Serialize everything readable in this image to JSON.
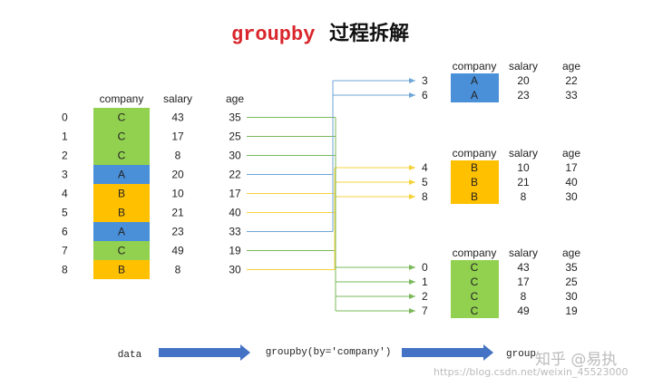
{
  "title": {
    "code": "groupby",
    "text": "过程拆解"
  },
  "headers": [
    "company",
    "salary",
    "age"
  ],
  "colors": {
    "A": "#4a90d9",
    "B": "#ffc000",
    "C": "#92d050"
  },
  "source_rows": [
    {
      "index": "0",
      "company": "C",
      "salary": "43",
      "age": "35"
    },
    {
      "index": "1",
      "company": "C",
      "salary": "17",
      "age": "25"
    },
    {
      "index": "2",
      "company": "C",
      "salary": "8",
      "age": "30"
    },
    {
      "index": "3",
      "company": "A",
      "salary": "20",
      "age": "22"
    },
    {
      "index": "4",
      "company": "B",
      "salary": "10",
      "age": "17"
    },
    {
      "index": "5",
      "company": "B",
      "salary": "21",
      "age": "40"
    },
    {
      "index": "6",
      "company": "A",
      "salary": "23",
      "age": "33"
    },
    {
      "index": "7",
      "company": "C",
      "salary": "49",
      "age": "19"
    },
    {
      "index": "8",
      "company": "B",
      "salary": "8",
      "age": "30"
    }
  ],
  "groups": [
    {
      "key": "A",
      "rows": [
        {
          "index": "3",
          "company": "A",
          "salary": "20",
          "age": "22"
        },
        {
          "index": "6",
          "company": "A",
          "salary": "23",
          "age": "33"
        }
      ]
    },
    {
      "key": "B",
      "rows": [
        {
          "index": "4",
          "company": "B",
          "salary": "10",
          "age": "17"
        },
        {
          "index": "5",
          "company": "B",
          "salary": "21",
          "age": "40"
        },
        {
          "index": "8",
          "company": "B",
          "salary": "8",
          "age": "30"
        }
      ]
    },
    {
      "key": "C",
      "rows": [
        {
          "index": "0",
          "company": "C",
          "salary": "43",
          "age": "35"
        },
        {
          "index": "1",
          "company": "C",
          "salary": "17",
          "age": "25"
        },
        {
          "index": "2",
          "company": "C",
          "salary": "8",
          "age": "30"
        },
        {
          "index": "7",
          "company": "C",
          "salary": "49",
          "age": "19"
        }
      ]
    }
  ],
  "flow": {
    "step1": "data",
    "step2": "groupby(by='company')",
    "step3": "group"
  },
  "watermark": {
    "main": "知乎 @易执",
    "url": "https://blog.csdn.net/weixin_45523000"
  }
}
